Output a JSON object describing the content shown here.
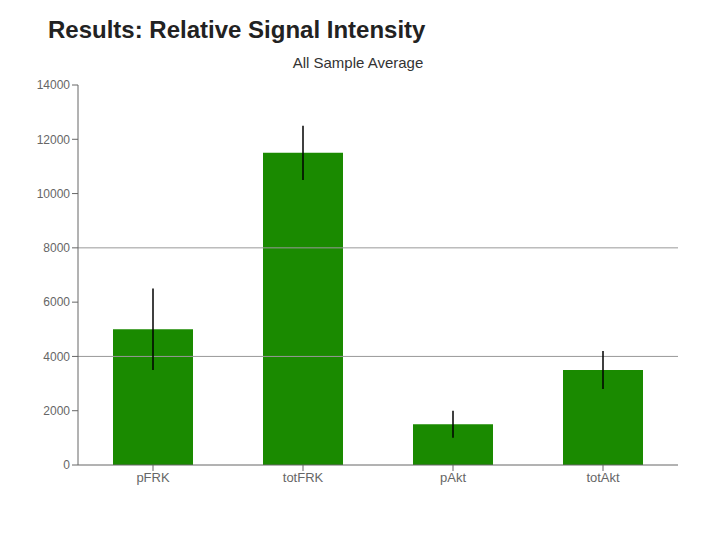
{
  "chart_data": {
    "type": "bar",
    "title": "Results: Relative Signal Intensity",
    "subtitle": "All Sample Average",
    "categories": [
      "pFRK",
      "totFRK",
      "pAkt",
      "totAkt"
    ],
    "values": [
      5000,
      11500,
      1500,
      3500
    ],
    "errors": [
      1500,
      1000,
      500,
      700
    ],
    "color": "#1a8a00",
    "ylim": [
      0,
      14000
    ],
    "yticks": [
      0,
      2000,
      4000,
      6000,
      8000,
      10000,
      12000,
      14000
    ],
    "hlines": [
      4000,
      8000
    ]
  }
}
